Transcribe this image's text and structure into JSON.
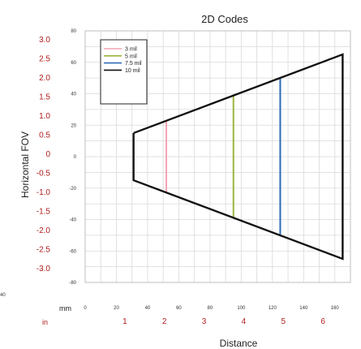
{
  "chart_data": {
    "type": "line",
    "title": "2D Codes",
    "xlabel": "Distance",
    "ylabel": "Horizontal FOV",
    "xlim": [
      0,
      170
    ],
    "ylim": [
      -80,
      80
    ],
    "x_ticks_mm": [
      0,
      20,
      40,
      60,
      80,
      100,
      120,
      140,
      160
    ],
    "y_ticks_mm": [
      80,
      60,
      40,
      20,
      0,
      -20,
      -40,
      -60,
      -80
    ],
    "x_ticks_in": [
      "1",
      "2",
      "3",
      "4",
      "5",
      "6"
    ],
    "y_ticks_in": [
      "3.0",
      "2.5",
      "2.0",
      "1.5",
      "1.0",
      "0.5",
      "0",
      "-0.5",
      "-1.0",
      "-1.5",
      "-2.0",
      "-2.5",
      "-3.0"
    ],
    "x_unit_mm": "mm",
    "x_unit_in": "in",
    "left_edge_label": "40",
    "grid": true,
    "legend_position": "top-left",
    "series": [
      {
        "name": "3 mil",
        "color": "#f4a3b4",
        "x": [
          52,
          52
        ],
        "y": [
          22.5,
          -22.5
        ]
      },
      {
        "name": "5 mil",
        "color": "#9cb43c",
        "x": [
          95,
          95
        ],
        "y": [
          38.5,
          -38.5
        ]
      },
      {
        "name": "7.5 mil",
        "color": "#2e6cb5",
        "x": [
          125,
          125
        ],
        "y": [
          49.5,
          -49.5
        ]
      },
      {
        "name": "10 mil",
        "color": "#111111",
        "x": [
          31,
          31,
          165,
          165,
          31
        ],
        "y": [
          15,
          -15,
          -65,
          65,
          15
        ]
      }
    ]
  }
}
